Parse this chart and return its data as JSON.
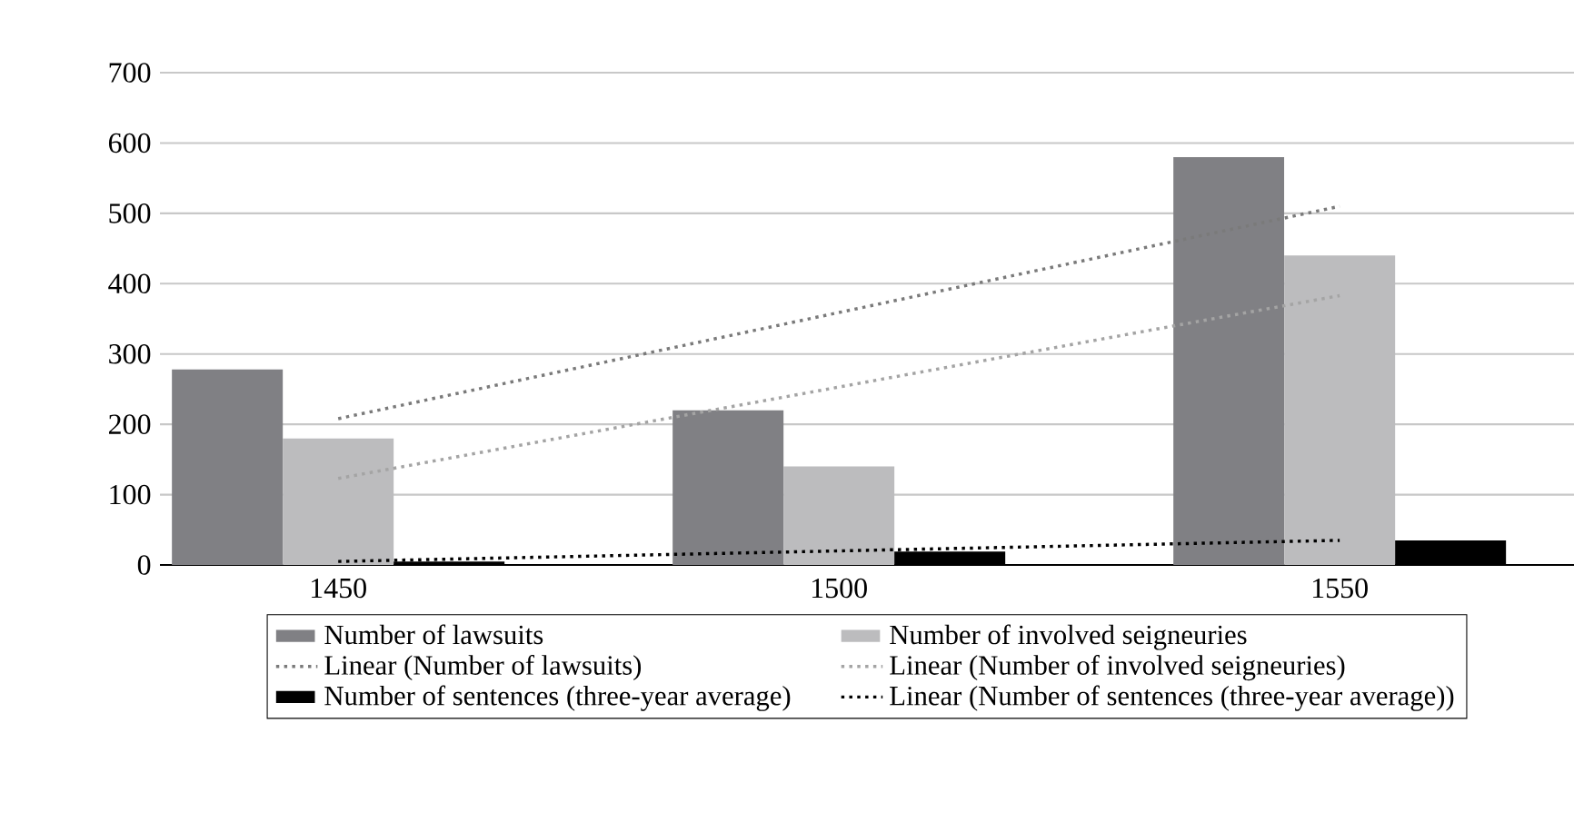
{
  "chart_data": {
    "type": "bar",
    "categories": [
      "1450",
      "1500",
      "1550"
    ],
    "series": [
      {
        "name": "Number of lawsuits",
        "color": "#808084",
        "values": [
          278,
          220,
          580
        ]
      },
      {
        "name": "Number of involved seigneuries",
        "color": "#bcbcbe",
        "values": [
          180,
          140,
          440
        ]
      },
      {
        "name": "Linear (Number of lawsuits)",
        "type": "line",
        "color": "#7a7a7a",
        "line_style": "dotted",
        "values": [
          208,
          359,
          510
        ]
      },
      {
        "name": "Linear (Number of involved seigneuries)",
        "type": "line",
        "color": "#a4a4a4",
        "line_style": "dotted",
        "values": [
          123,
          253,
          383
        ]
      },
      {
        "name": "Number of sentences (three-year average)",
        "color": "#000000",
        "values": [
          5,
          19,
          35
        ]
      },
      {
        "name": "Linear (Number of sentences (three-year average))",
        "type": "line",
        "color": "#000000",
        "line_style": "dotted",
        "values": [
          5,
          20,
          35
        ]
      }
    ],
    "ylim": [
      0,
      700
    ],
    "yticks": [
      0,
      100,
      200,
      300,
      400,
      500,
      600,
      700
    ],
    "grid": "y",
    "legend": "bottom",
    "marker": "none"
  }
}
